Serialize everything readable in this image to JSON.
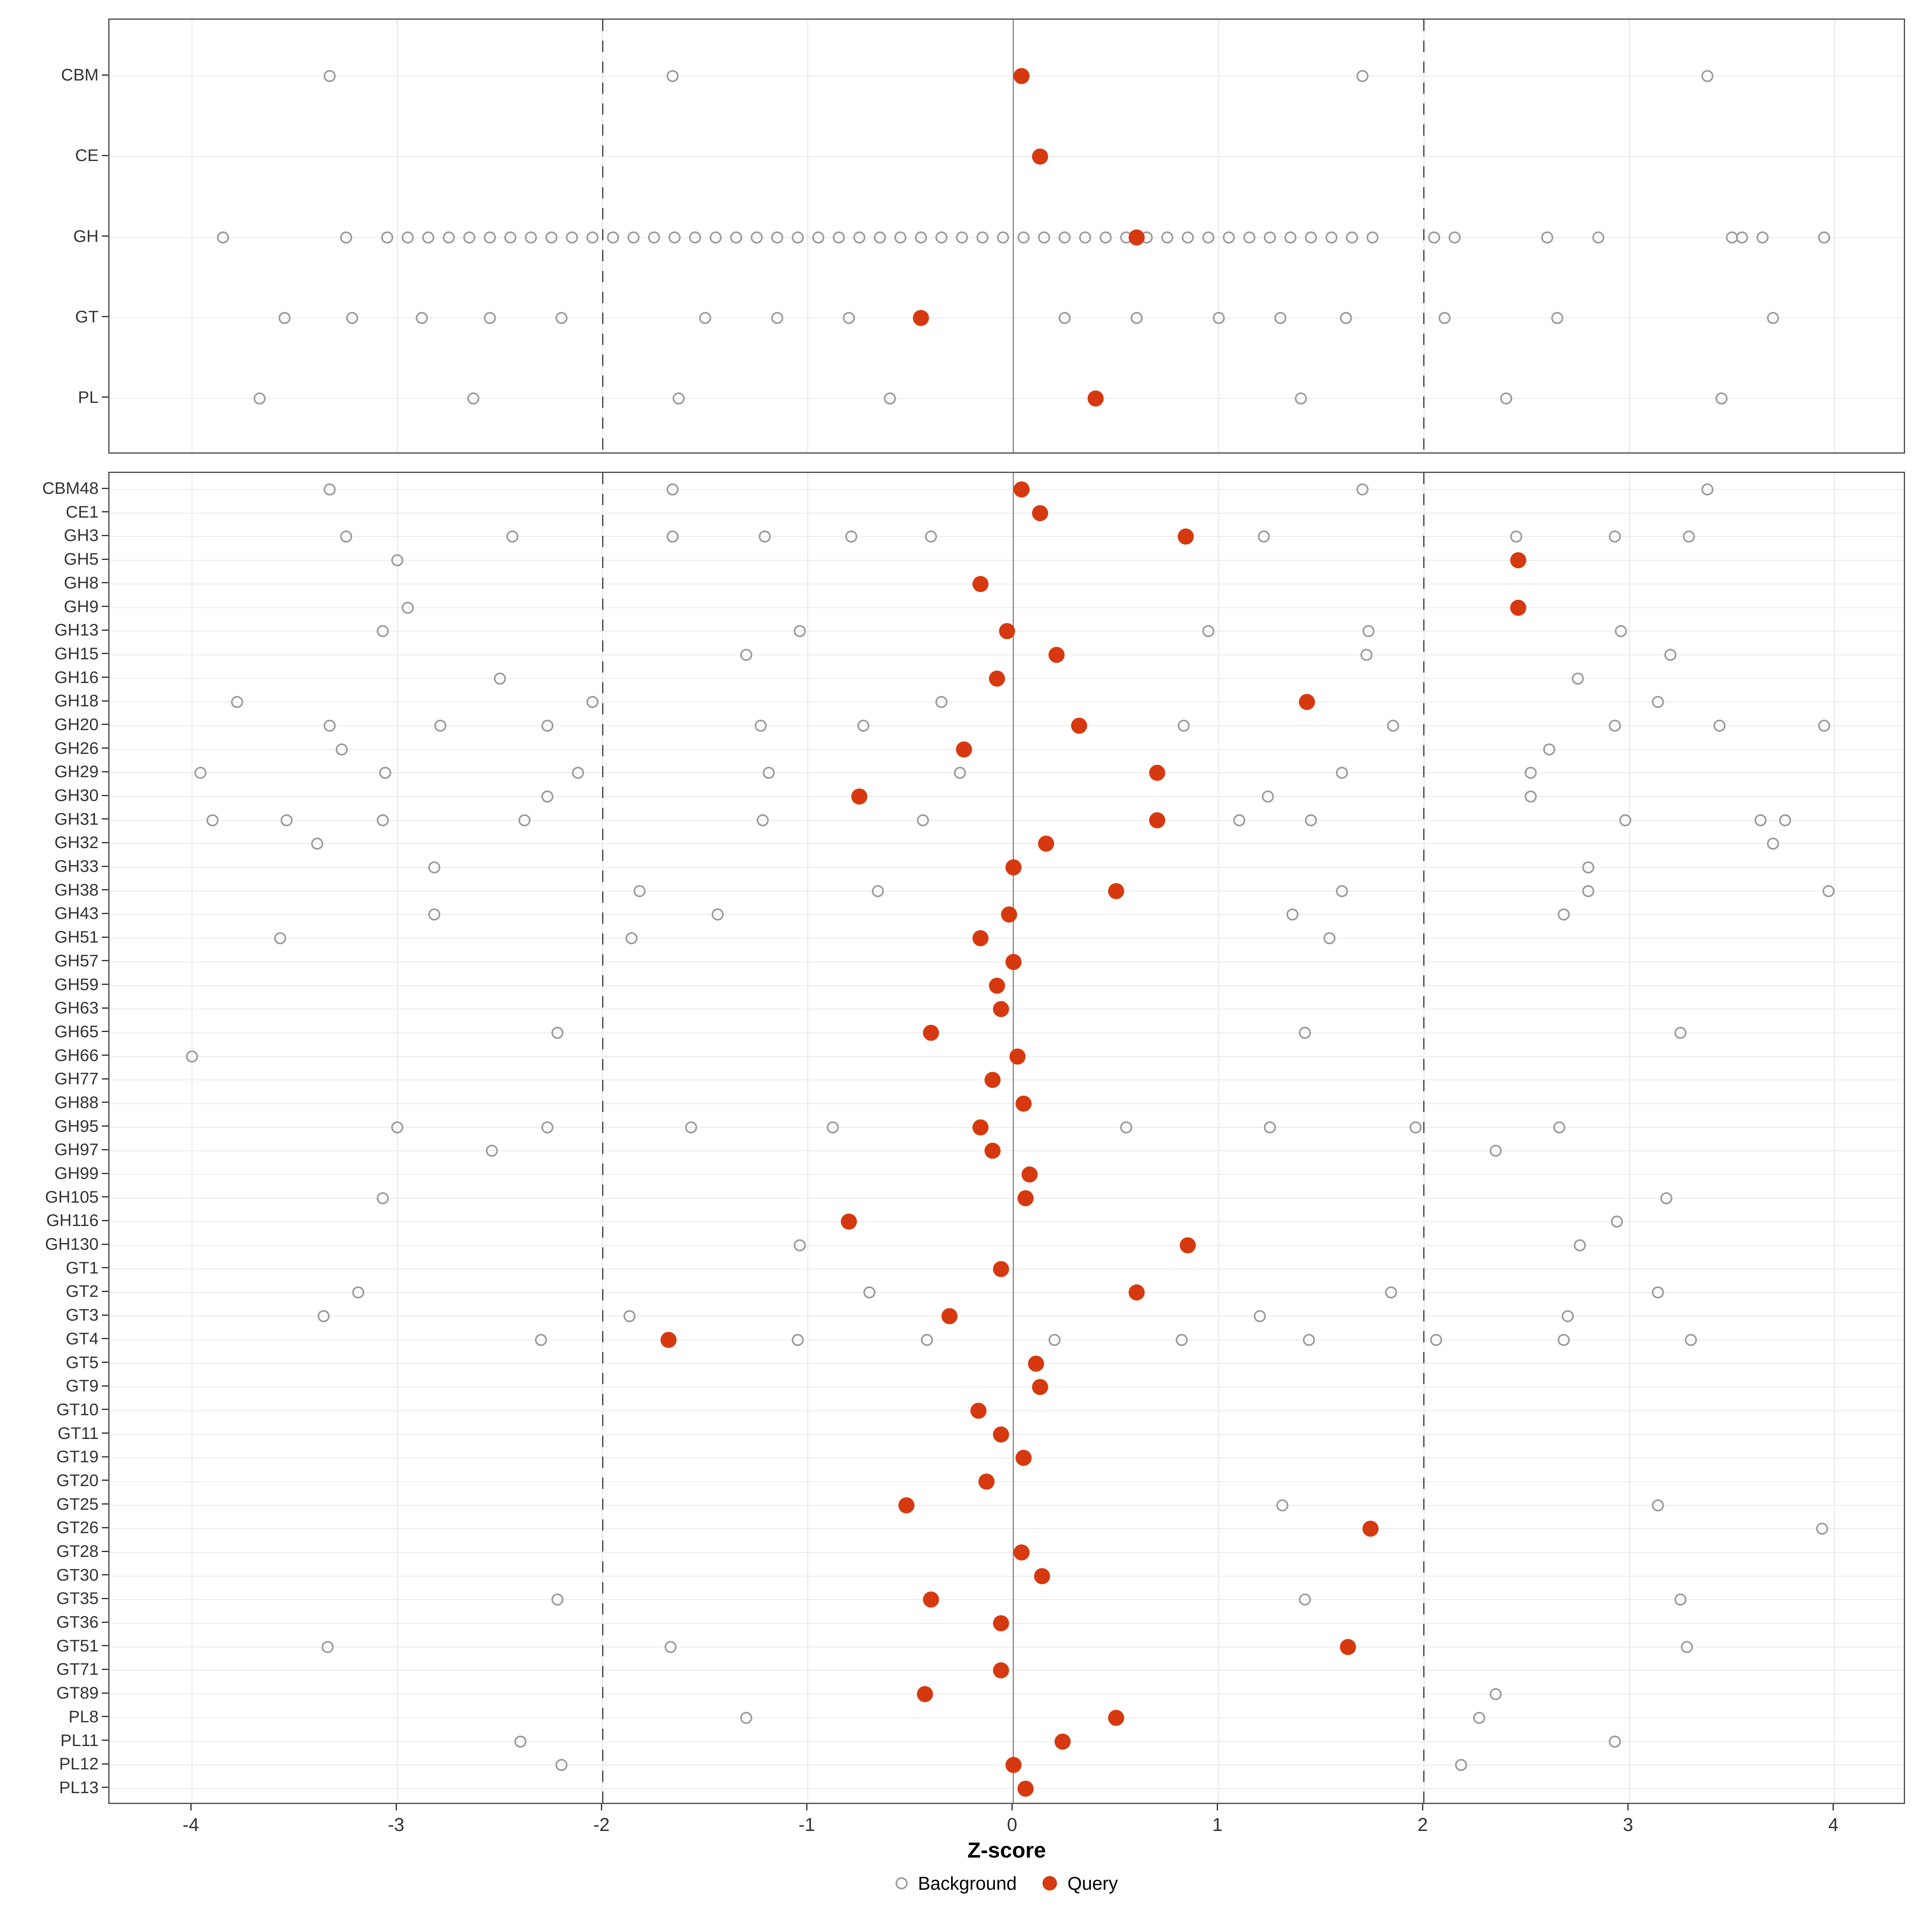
{
  "xlabel": "Z-score",
  "legend": {
    "background_label": "Background",
    "query_label": "Query"
  },
  "colors": {
    "query": "#d6390f",
    "background": "#9b9b9b",
    "grid": "#e4e4e4",
    "zero_line": "#8a8a8a",
    "dashed_line": "#3d3d3d",
    "panel_border": "#4d4d4d",
    "axis_text": "#333333"
  },
  "axis": {
    "ticks": [
      -4,
      -3,
      -2,
      -1,
      0,
      1,
      2,
      3,
      4
    ],
    "tick_labels": [
      "-4",
      "-3",
      "-2",
      "-1",
      "0",
      "1",
      "2",
      "3",
      "4"
    ],
    "solid_ref": 0,
    "dashed_refs": [
      -2,
      2
    ]
  },
  "chart_data": {
    "type": "scatter",
    "xlabel": "Z-score",
    "xlim": [
      -4.4,
      4.35
    ],
    "legend_entries": [
      "Background",
      "Query"
    ],
    "panels": [
      {
        "name": "enzyme-class-summary",
        "rows": [
          {
            "label": "CBM",
            "query": 0.04,
            "background": [
              -3.33,
              -1.66,
              1.7,
              3.38
            ]
          },
          {
            "label": "CE",
            "query": 0.13,
            "background": []
          },
          {
            "label": "GH",
            "query": 0.6,
            "background": [
              -3.85,
              -3.25,
              -3.05,
              -2.95,
              -2.85,
              -2.75,
              -2.65,
              -2.55,
              -2.45,
              -2.35,
              -2.25,
              -2.15,
              -2.05,
              -1.95,
              -1.85,
              -1.75,
              -1.65,
              -1.55,
              -1.45,
              -1.35,
              -1.25,
              -1.15,
              -1.05,
              -0.95,
              -0.85,
              -0.75,
              -0.65,
              -0.55,
              -0.45,
              -0.35,
              -0.25,
              -0.15,
              -0.05,
              0.05,
              0.15,
              0.25,
              0.35,
              0.45,
              0.55,
              0.65,
              0.75,
              0.85,
              0.95,
              1.05,
              1.15,
              1.25,
              1.35,
              1.45,
              1.55,
              1.65,
              1.75,
              2.05,
              2.15,
              2.6,
              2.85,
              3.5,
              3.55,
              3.65,
              3.95
            ]
          },
          {
            "label": "GT",
            "query": -0.45,
            "background": [
              -3.55,
              -3.22,
              -2.88,
              -2.55,
              -2.2,
              -1.5,
              -1.15,
              -0.8,
              0.25,
              0.6,
              1.0,
              1.3,
              1.62,
              2.1,
              2.65,
              3.7
            ]
          },
          {
            "label": "PL",
            "query": 0.4,
            "background": [
              -3.67,
              -2.63,
              -1.63,
              -0.6,
              1.4,
              2.4,
              3.45
            ]
          }
        ]
      },
      {
        "name": "enzyme-family-detail",
        "rows": [
          {
            "label": "CBM48",
            "query": 0.04,
            "background": [
              -3.33,
              -1.66,
              1.7,
              3.38
            ]
          },
          {
            "label": "CE1",
            "query": 0.13,
            "background": []
          },
          {
            "label": "GH3",
            "query": 0.84,
            "background": [
              -3.25,
              -2.44,
              -1.66,
              -1.21,
              -0.79,
              -0.4,
              1.22,
              2.45,
              2.93,
              3.29
            ]
          },
          {
            "label": "GH5",
            "query": 2.46,
            "background": [
              -3.0
            ]
          },
          {
            "label": "GH8",
            "query": -0.16,
            "background": []
          },
          {
            "label": "GH9",
            "query": 2.46,
            "background": [
              -2.95
            ]
          },
          {
            "label": "GH13",
            "query": -0.03,
            "background": [
              -3.07,
              -1.04,
              0.95,
              1.73,
              2.96
            ]
          },
          {
            "label": "GH15",
            "query": 0.21,
            "background": [
              -1.3,
              1.72,
              3.2
            ]
          },
          {
            "label": "GH16",
            "query": -0.08,
            "background": [
              -2.5,
              2.75
            ]
          },
          {
            "label": "GH18",
            "query": 1.43,
            "background": [
              -3.78,
              -2.05,
              -0.35,
              3.14
            ]
          },
          {
            "label": "GH20",
            "query": 0.32,
            "background": [
              -3.33,
              -2.79,
              -2.27,
              -1.23,
              -0.73,
              0.83,
              1.85,
              2.93,
              3.44,
              3.95
            ]
          },
          {
            "label": "GH26",
            "query": -0.24,
            "background": [
              -3.27,
              2.61
            ]
          },
          {
            "label": "GH29",
            "query": 0.7,
            "background": [
              -3.96,
              -3.06,
              -2.12,
              -1.19,
              -0.26,
              1.6,
              2.52
            ]
          },
          {
            "label": "GH30",
            "query": -0.75,
            "background": [
              -2.27,
              1.24,
              2.52
            ]
          },
          {
            "label": "GH31",
            "query": 0.7,
            "background": [
              -3.9,
              -3.54,
              -3.07,
              -2.38,
              -1.22,
              -0.44,
              1.1,
              1.45,
              2.98,
              3.64,
              3.76
            ]
          },
          {
            "label": "GH32",
            "query": 0.16,
            "background": [
              -3.39,
              3.7
            ]
          },
          {
            "label": "GH33",
            "query": 0.0,
            "background": [
              -2.82,
              2.8
            ]
          },
          {
            "label": "GH38",
            "query": 0.5,
            "background": [
              -1.82,
              -0.66,
              1.6,
              2.8,
              3.97
            ]
          },
          {
            "label": "GH43",
            "query": -0.02,
            "background": [
              -2.82,
              -1.44,
              1.36,
              2.68
            ]
          },
          {
            "label": "GH51",
            "query": -0.16,
            "background": [
              -3.57,
              -1.86,
              1.54
            ]
          },
          {
            "label": "GH57",
            "query": 0.0,
            "background": []
          },
          {
            "label": "GH59",
            "query": -0.08,
            "background": []
          },
          {
            "label": "GH63",
            "query": -0.06,
            "background": []
          },
          {
            "label": "GH65",
            "query": -0.4,
            "background": [
              -2.22,
              1.42,
              3.25
            ]
          },
          {
            "label": "GH66",
            "query": 0.02,
            "background": [
              -4.0
            ]
          },
          {
            "label": "GH77",
            "query": -0.1,
            "background": []
          },
          {
            "label": "GH88",
            "query": 0.05,
            "background": []
          },
          {
            "label": "GH95",
            "query": -0.16,
            "background": [
              -3.0,
              -2.27,
              -1.57,
              -0.88,
              0.55,
              1.25,
              1.96,
              2.66
            ]
          },
          {
            "label": "GH97",
            "query": -0.1,
            "background": [
              -2.54,
              2.35
            ]
          },
          {
            "label": "GH99",
            "query": 0.08,
            "background": []
          },
          {
            "label": "GH105",
            "query": 0.06,
            "background": [
              -3.07,
              3.18
            ]
          },
          {
            "label": "GH116",
            "query": -0.8,
            "background": [
              2.94
            ]
          },
          {
            "label": "GH130",
            "query": 0.85,
            "background": [
              -1.04,
              2.76
            ]
          },
          {
            "label": "GT1",
            "query": -0.06,
            "background": []
          },
          {
            "label": "GT2",
            "query": 0.6,
            "background": [
              -3.19,
              -0.7,
              1.84,
              3.14
            ]
          },
          {
            "label": "GT3",
            "query": -0.31,
            "background": [
              -3.36,
              -1.87,
              1.2,
              2.7
            ]
          },
          {
            "label": "GT4",
            "query": -1.68,
            "background": [
              -2.3,
              -1.05,
              -0.42,
              0.2,
              0.82,
              1.44,
              2.06,
              2.68,
              3.3
            ]
          },
          {
            "label": "GT5",
            "query": 0.11,
            "background": []
          },
          {
            "label": "GT9",
            "query": 0.13,
            "background": []
          },
          {
            "label": "GT10",
            "query": -0.17,
            "background": []
          },
          {
            "label": "GT11",
            "query": -0.06,
            "background": []
          },
          {
            "label": "GT19",
            "query": 0.05,
            "background": []
          },
          {
            "label": "GT20",
            "query": -0.13,
            "background": []
          },
          {
            "label": "GT25",
            "query": -0.52,
            "background": [
              1.31,
              3.14
            ]
          },
          {
            "label": "GT26",
            "query": 1.74,
            "background": [
              3.94
            ]
          },
          {
            "label": "GT28",
            "query": 0.04,
            "background": []
          },
          {
            "label": "GT30",
            "query": 0.14,
            "background": []
          },
          {
            "label": "GT35",
            "query": -0.4,
            "background": [
              -2.22,
              1.42,
              3.25
            ]
          },
          {
            "label": "GT36",
            "query": -0.06,
            "background": []
          },
          {
            "label": "GT51",
            "query": 1.63,
            "background": [
              -3.34,
              -1.67,
              3.28
            ]
          },
          {
            "label": "GT71",
            "query": -0.06,
            "background": []
          },
          {
            "label": "GT89",
            "query": -0.43,
            "background": [
              2.35
            ]
          },
          {
            "label": "PL8",
            "query": 0.5,
            "background": [
              -1.3,
              2.27
            ]
          },
          {
            "label": "PL11",
            "query": 0.24,
            "background": [
              -2.4,
              2.93
            ]
          },
          {
            "label": "PL12",
            "query": 0.0,
            "background": [
              -2.2,
              2.18
            ]
          },
          {
            "label": "PL13",
            "query": 0.06,
            "background": []
          }
        ]
      }
    ]
  }
}
